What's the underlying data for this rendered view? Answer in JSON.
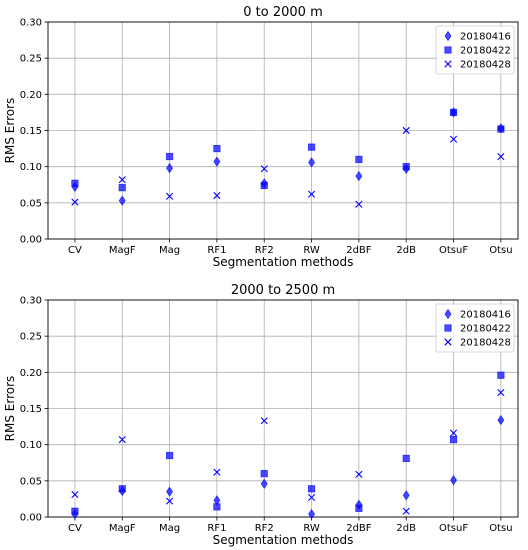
{
  "chart_data": [
    {
      "type": "scatter",
      "title": "0 to 2000 m",
      "xlabel": "Segmentation methods",
      "ylabel": "RMS Errors",
      "ylim": [
        0,
        0.3
      ],
      "yticks": [
        "0.00",
        "0.05",
        "0.10",
        "0.15",
        "0.20",
        "0.25",
        "0.30"
      ],
      "grid": true,
      "legend_position": "top-right",
      "categories": [
        "CV",
        "MagF",
        "Mag",
        "RF1",
        "RF2",
        "RW",
        "2dBF",
        "2dB",
        "OtsuF",
        "Otsu"
      ],
      "series": [
        {
          "name": "20180416",
          "marker": "diamond",
          "color": "#0000ff",
          "values": [
            0.072,
            0.053,
            0.098,
            0.107,
            0.077,
            0.106,
            0.087,
            0.097,
            0.175,
            0.153
          ]
        },
        {
          "name": "20180422",
          "marker": "square",
          "color": "#0000ff",
          "values": [
            0.077,
            0.071,
            0.114,
            0.125,
            0.074,
            0.127,
            0.11,
            0.1,
            0.175,
            0.152
          ]
        },
        {
          "name": "20180428",
          "marker": "x",
          "color": "#0000ff",
          "values": [
            0.051,
            0.082,
            0.059,
            0.06,
            0.097,
            0.062,
            0.048,
            0.15,
            0.138,
            0.114
          ]
        }
      ]
    },
    {
      "type": "scatter",
      "title": "2000 to 2500 m",
      "xlabel": "Segmentation methods",
      "ylabel": "RMS Errors",
      "ylim": [
        0,
        0.3
      ],
      "yticks": [
        "0.00",
        "0.05",
        "0.10",
        "0.15",
        "0.20",
        "0.25",
        "0.30"
      ],
      "grid": true,
      "legend_position": "top-right",
      "categories": [
        "CV",
        "MagF",
        "Mag",
        "RF1",
        "RF2",
        "RW",
        "2dBF",
        "2dB",
        "OtsuF",
        "Otsu"
      ],
      "series": [
        {
          "name": "20180416",
          "marker": "diamond",
          "color": "#0000ff",
          "values": [
            0.004,
            0.036,
            0.035,
            0.023,
            0.046,
            0.004,
            0.017,
            0.03,
            0.051,
            0.134
          ]
        },
        {
          "name": "20180422",
          "marker": "square",
          "color": "#0000ff",
          "values": [
            0.008,
            0.039,
            0.085,
            0.014,
            0.06,
            0.039,
            0.012,
            0.081,
            0.107,
            0.196
          ]
        },
        {
          "name": "20180428",
          "marker": "x",
          "color": "#0000ff",
          "values": [
            0.031,
            0.107,
            0.022,
            0.062,
            0.133,
            0.027,
            0.059,
            0.008,
            0.116,
            0.172
          ]
        }
      ]
    }
  ]
}
